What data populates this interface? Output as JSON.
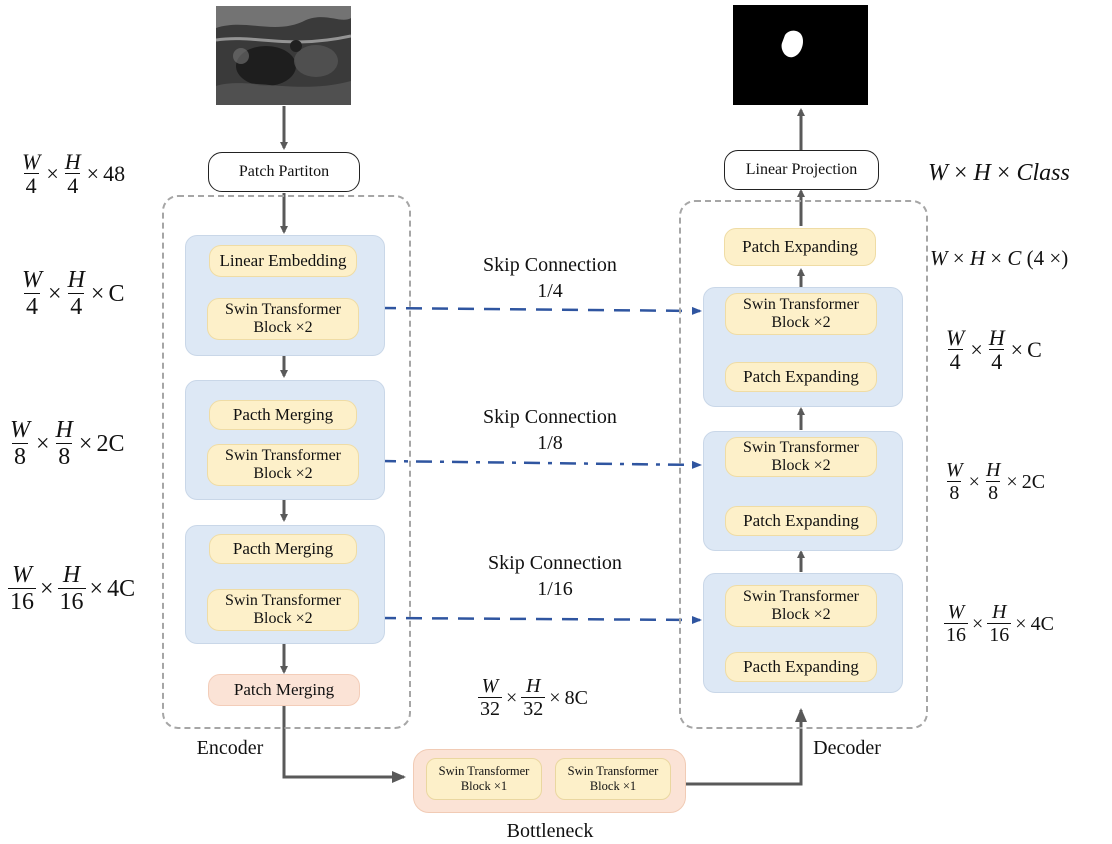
{
  "input_image": {
    "name": "ultrasound input image"
  },
  "output_image": {
    "name": "segmentation mask output"
  },
  "encoder": {
    "title": "Encoder",
    "patch_partition": "Patch Partiton",
    "stage1": {
      "top": "Linear Embedding",
      "bottom_line1": "Swin Transformer",
      "bottom_line2": "Block ×2"
    },
    "stage2": {
      "top": "Pacth Merging",
      "bottom_line1": "Swin Transformer",
      "bottom_line2": "Block ×2"
    },
    "stage3": {
      "top": "Pacth Merging",
      "bottom_line1": "Swin Transformer",
      "bottom_line2": "Block ×2"
    },
    "final_merge": "Patch Merging"
  },
  "decoder": {
    "title": "Decoder",
    "linear_projection": "Linear Projection",
    "top_expand": "Patch Expanding",
    "stage1": {
      "top_line1": "Swin Transformer",
      "top_line2": "Block ×2",
      "bottom": "Patch Expanding"
    },
    "stage2": {
      "top_line1": "Swin Transformer",
      "top_line2": "Block ×2",
      "bottom": "Patch Expanding"
    },
    "stage3": {
      "top_line1": "Swin Transformer",
      "top_line2": "Block ×2",
      "bottom": "Pacth Expanding"
    }
  },
  "bottleneck": {
    "title": "Bottleneck",
    "block1_line1": "Swin Transformer",
    "block1_line2": "Block ×1",
    "block2_line1": "Swin Transformer",
    "block2_line2": "Block ×1"
  },
  "skip": [
    {
      "label": "Skip Connection",
      "ratio": "1/4"
    },
    {
      "label": "Skip Connection",
      "ratio": "1/8"
    },
    {
      "label": "Skip Connection",
      "ratio": "1/16"
    }
  ],
  "dims": {
    "left": [
      {
        "w_den": "4",
        "h_den": "4",
        "suffix": "48"
      },
      {
        "w_den": "4",
        "h_den": "4",
        "suffix": "C"
      },
      {
        "w_den": "8",
        "h_den": "8",
        "suffix": "2C"
      },
      {
        "w_den": "16",
        "h_den": "16",
        "suffix": "4C"
      }
    ],
    "right": [
      {
        "w_den": "4",
        "h_den": "4",
        "suffix": "C"
      },
      {
        "w_den": "8",
        "h_den": "8",
        "suffix": "2C"
      },
      {
        "w_den": "16",
        "h_den": "16",
        "suffix": "4C"
      }
    ],
    "bottleneck": {
      "w_den": "32",
      "h_den": "32",
      "suffix": "8C"
    },
    "num_w": "W",
    "num_h": "H",
    "times": "×",
    "output_formula": {
      "w": "W",
      "h": "H",
      "cls": "Class"
    },
    "expand_formula": {
      "w": "W",
      "h": "H",
      "c": "C",
      "factor": "(4 ×)"
    }
  },
  "colors": {
    "stage_bg": "#dde8f5",
    "block_bg": "#fdf0c9",
    "merge_bg": "#fbe3d6",
    "skip_line": "#2f55a0",
    "arrow": "#595959"
  }
}
